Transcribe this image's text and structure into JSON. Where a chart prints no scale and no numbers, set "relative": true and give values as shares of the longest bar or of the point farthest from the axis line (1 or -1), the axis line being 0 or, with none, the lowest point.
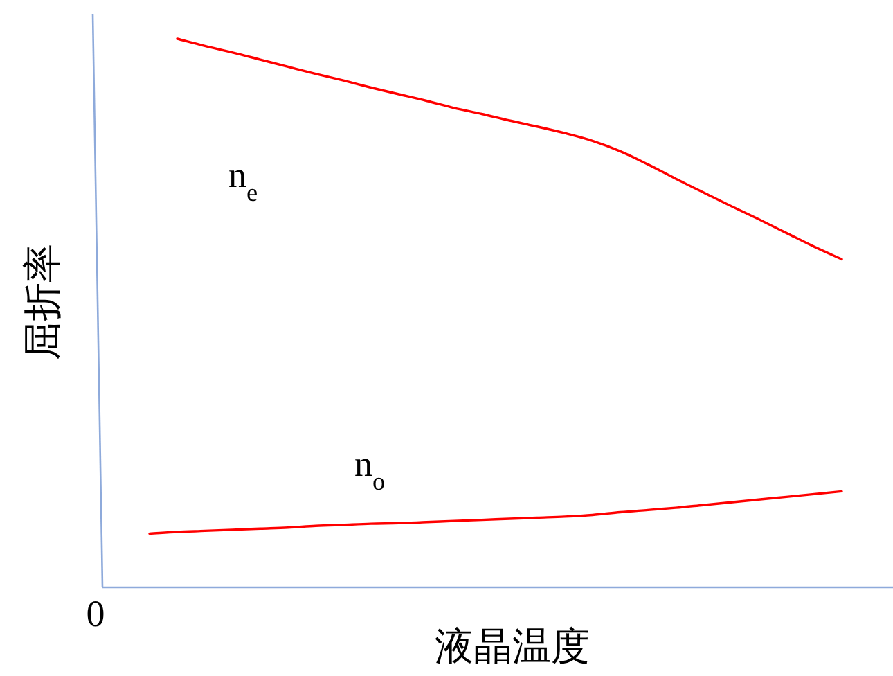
{
  "chart_data": {
    "type": "line",
    "relative": true,
    "xlabel": "液晶温度",
    "ylabel": "屈折率",
    "annotations": [
      "0"
    ],
    "categories": [
      null,
      null,
      null,
      null,
      null,
      null,
      null,
      null,
      null,
      null,
      null,
      null,
      null,
      null,
      null,
      null,
      null,
      null,
      null,
      null,
      null,
      null,
      null,
      null,
      null,
      null
    ],
    "series": [
      {
        "name": "n$_{e}$",
        "color": "#ff0000",
        "values": [
          null,
          1,
          0.987,
          0.975,
          0.962,
          0.949,
          0.936,
          0.924,
          0.911,
          0.899,
          0.887,
          0.874,
          0.863,
          0.851,
          0.84,
          0.828,
          0.814,
          0.795,
          0.771,
          0.745,
          0.72,
          0.695,
          0.671,
          0.646,
          0.621,
          0.598
        ]
      },
      {
        "name": "n$_{o}$",
        "color": "#ff0000",
        "values": [
          0.098,
          0.101,
          0.103,
          0.105,
          0.107,
          0.109,
          0.112,
          0.114,
          0.116,
          0.117,
          0.119,
          0.121,
          0.123,
          0.125,
          0.127,
          0.129,
          0.132,
          0.137,
          0.141,
          0.145,
          0.15,
          0.155,
          0.16,
          0.165,
          0.17,
          0.175
        ]
      }
    ]
  }
}
